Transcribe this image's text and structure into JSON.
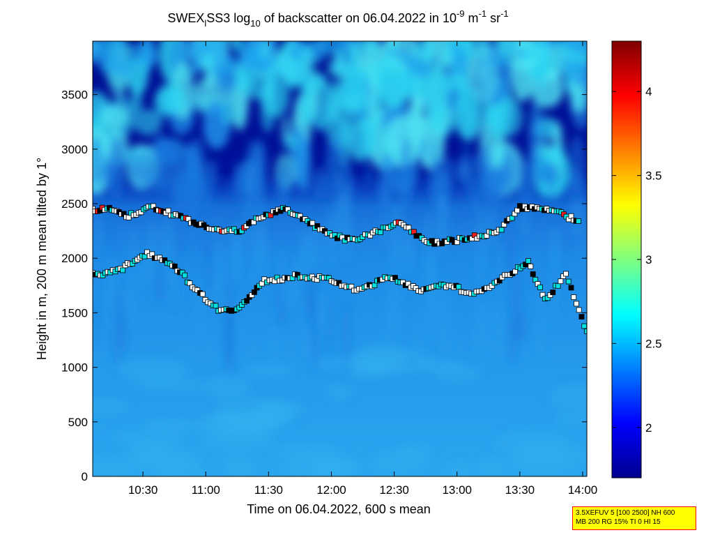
{
  "chart_data": {
    "type": "heatmap",
    "title": {
      "prefix": "SWEX",
      "prefix_sub": "l",
      "middle": "SS3 log",
      "log_sub": "10",
      "rest": " of backscatter on 06.04.2022 in 10",
      "exp1": "-9",
      "unit_m": " m",
      "exp2": "-1",
      "unit_sr": " sr",
      "exp3": "-1"
    },
    "xlabel": "Time on 06.04.2022, 600 s mean",
    "ylabel": "Height in m, 200 m mean tilted by 1°",
    "x_range": [
      "10:06",
      "14:02"
    ],
    "x_ticks": [
      "10:30",
      "11:00",
      "11:30",
      "12:00",
      "12:30",
      "13:00",
      "13:30",
      "14:00"
    ],
    "y_range": [
      0,
      3990
    ],
    "y_ticks": [
      0,
      500,
      1000,
      1500,
      2000,
      2500,
      3000,
      3500
    ],
    "colorbar": {
      "range": [
        1.7,
        4.3
      ],
      "ticks": [
        2,
        2.5,
        3,
        3.5,
        4
      ],
      "colormap": "jet"
    },
    "layers": {
      "top_backscatter_bottom_m": 2450,
      "upper_clouds_m": [
        2700,
        3990
      ]
    },
    "colors": {
      "low": "#00008f",
      "mid": "#1e8ce6",
      "high": "#800000",
      "marker_white": "#ffffff",
      "marker_cyan": "#00e0e0",
      "marker_black": "#000000",
      "marker_red": "#ff2020"
    },
    "series": [
      {
        "values": [
          [
            "10:06",
            2440
          ],
          [
            "10:14",
            2450
          ],
          [
            "10:22",
            2380
          ],
          [
            "10:35",
            2470
          ],
          [
            "10:48",
            2380
          ],
          [
            "11:04",
            2250
          ],
          [
            "11:16",
            2250
          ],
          [
            "11:24",
            2360
          ],
          [
            "11:38",
            2460
          ],
          [
            "11:58",
            2220
          ],
          [
            "12:10",
            2160
          ],
          [
            "12:32",
            2320
          ],
          [
            "12:48",
            2140
          ],
          [
            "13:06",
            2180
          ],
          [
            "13:20",
            2250
          ],
          [
            "13:30",
            2470
          ],
          [
            "13:44",
            2450
          ],
          [
            "13:58",
            2340
          ]
        ]
      },
      {
        "values": [
          [
            "10:06",
            1850
          ],
          [
            "10:18",
            1880
          ],
          [
            "10:32",
            2050
          ],
          [
            "10:44",
            1950
          ],
          [
            "10:56",
            1700
          ],
          [
            "11:06",
            1530
          ],
          [
            "11:16",
            1540
          ],
          [
            "11:28",
            1790
          ],
          [
            "11:45",
            1840
          ],
          [
            "12:00",
            1800
          ],
          [
            "12:12",
            1700
          ],
          [
            "12:28",
            1830
          ],
          [
            "12:44",
            1700
          ],
          [
            "12:56",
            1760
          ],
          [
            "13:08",
            1660
          ],
          [
            "13:24",
            1850
          ],
          [
            "13:34",
            1960
          ],
          [
            "13:42",
            1620
          ],
          [
            "13:52",
            1850
          ],
          [
            "14:02",
            1330
          ]
        ]
      }
    ]
  },
  "info_box": {
    "line1": "3.5XEFUV 5 [100 2500] NH 600",
    "line2": "MB 200 RG 15% TI 0 HI 15"
  }
}
